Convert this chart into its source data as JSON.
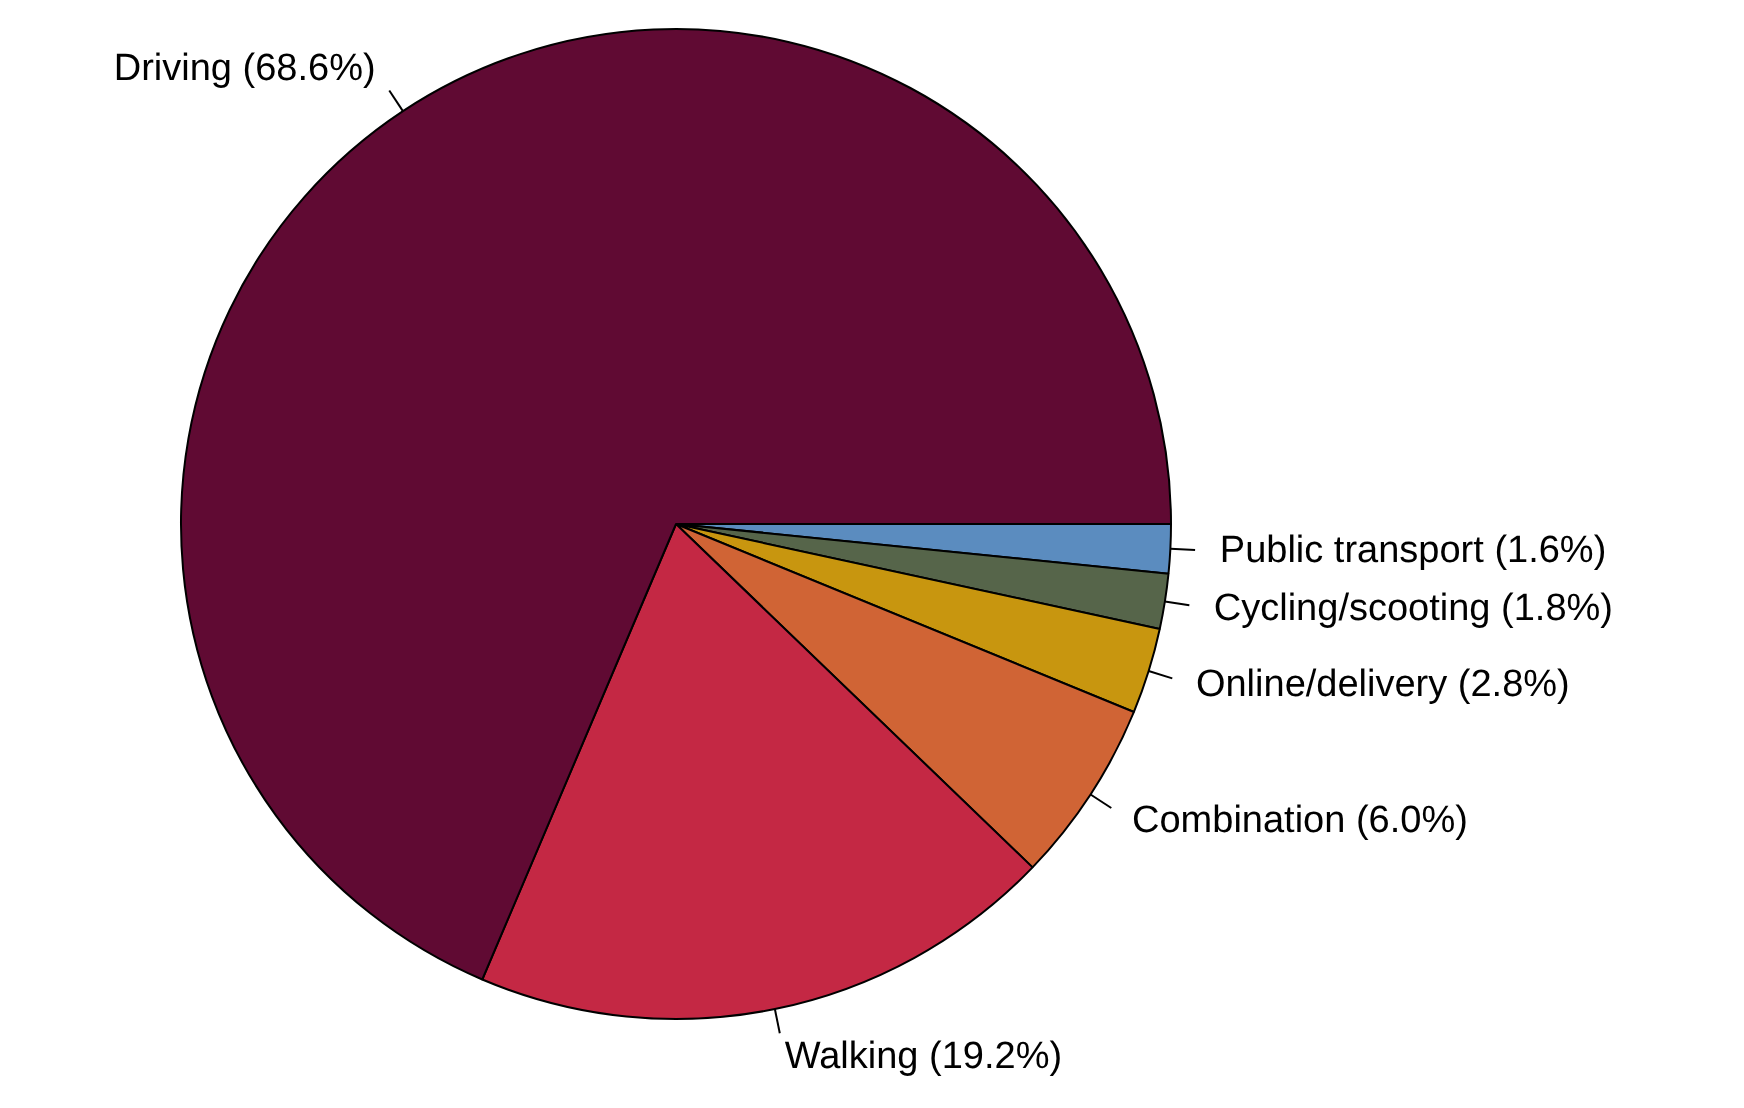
{
  "chart_data": {
    "type": "pie",
    "categories": [
      "Driving (68.6%)",
      "Walking (19.2%)",
      "Combination (6.0%)",
      "Online/delivery (2.8%)",
      "Cycling/scooting (1.8%)",
      "Public transport (1.6%)"
    ],
    "values": [
      68.6,
      19.2,
      6.0,
      2.8,
      1.8,
      1.6
    ],
    "colors": [
      "#600a33",
      "#c42844",
      "#d06435",
      "#c8960f",
      "#56654a",
      "#5b8cbf"
    ],
    "legend": false
  }
}
